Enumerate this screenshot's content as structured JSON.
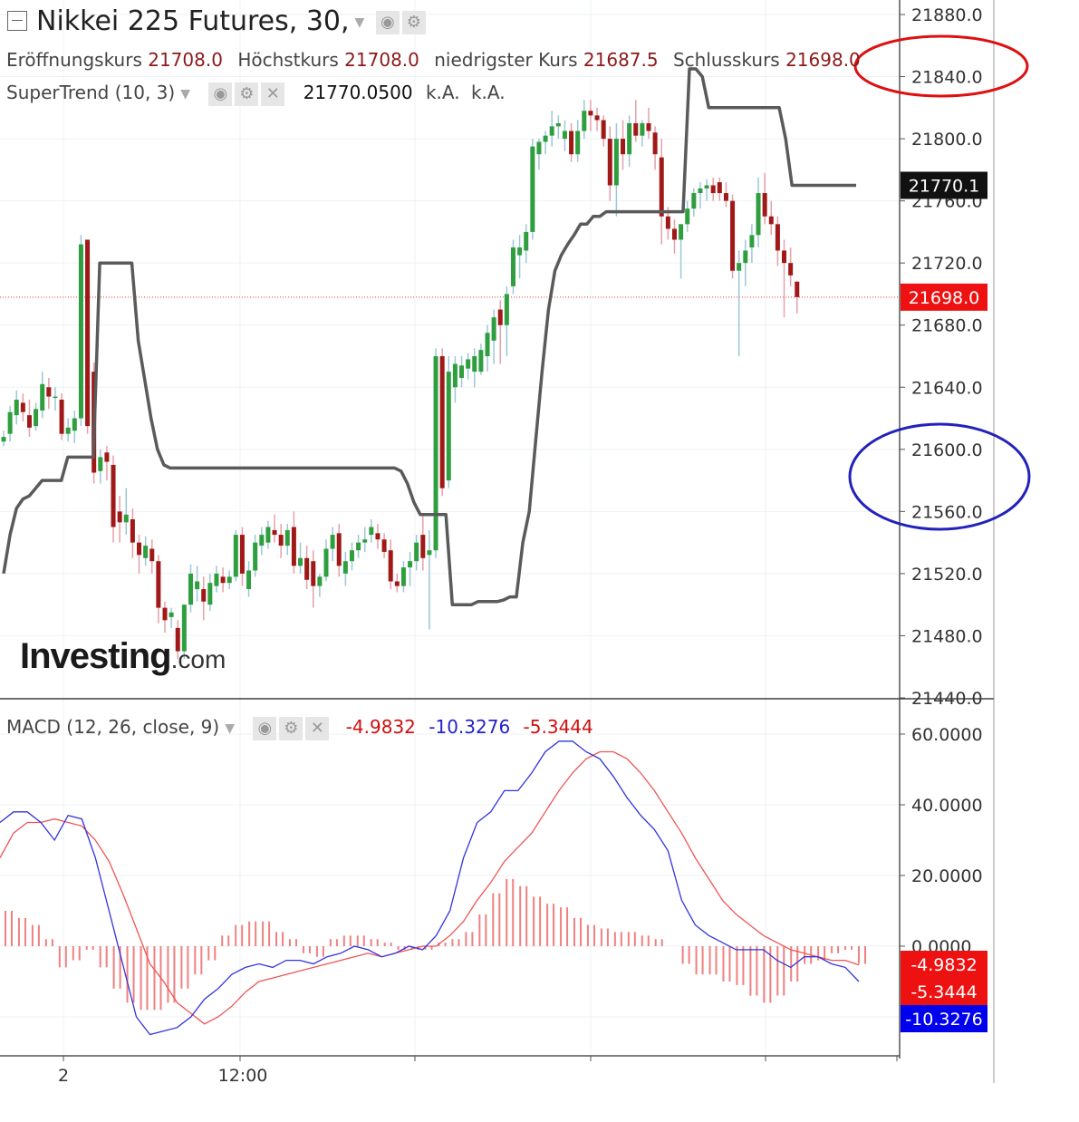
{
  "header": {
    "title": "Nikkei 225 Futures, 30,",
    "ohlc": [
      {
        "label": "Eröffnungskurs",
        "value": "21708.0"
      },
      {
        "label": "Höchstkurs",
        "value": "21708.0"
      },
      {
        "label": "niedrigster Kurs",
        "value": "21687.5"
      },
      {
        "label": "Schlusskurs",
        "value": "21698.0"
      }
    ],
    "supertrend": {
      "label": "SuperTrend (10, 3)",
      "value": "21770.0500",
      "extra1": "k.A.",
      "extra2": "k.A."
    },
    "macd": {
      "label": "MACD (12, 26, close, 9)",
      "v1": "-4.9832",
      "v2": "-10.3276",
      "v3": "-5.3444"
    }
  },
  "logo": {
    "brand": "Investing",
    "suffix": ".com"
  },
  "colors": {
    "up": "#2e9e3e",
    "down": "#a01818",
    "supertrend": "#5a5a5a",
    "macd": "#3333dd",
    "signal": "#ee5555",
    "hist": "#f08080",
    "price_tag": "#ee1111",
    "ann_red": "#dd1111",
    "ann_blue": "#2222bb"
  },
  "chart_data": [
    {
      "type": "candlestick",
      "title": "Nikkei 225 Futures, 30,",
      "ylim": [
        21440,
        21880
      ],
      "y_ticks": [
        "21880.0",
        "21840.0",
        "21800.0",
        "21760.0",
        "21720.0",
        "21680.0",
        "21640.0",
        "21600.0",
        "21560.0",
        "21520.0",
        "21480.0",
        "21440.0"
      ],
      "x_ticks": [
        {
          "label": "2",
          "bar": 10
        },
        {
          "label": "12:00",
          "bar": 38
        }
      ],
      "price_labels": {
        "supertrend": "21770.1",
        "last": "21698.0"
      },
      "candles": [
        [
          21605,
          21612,
          21602,
          21608
        ],
        [
          21610,
          21628,
          21605,
          21624
        ],
        [
          21622,
          21638,
          21616,
          21632
        ],
        [
          21630,
          21636,
          21618,
          21624
        ],
        [
          21622,
          21632,
          21608,
          21614
        ],
        [
          21615,
          21630,
          21612,
          21626
        ],
        [
          21625,
          21650,
          21620,
          21642
        ],
        [
          21640,
          21646,
          21626,
          21634
        ],
        [
          21634,
          21640,
          21625,
          21634
        ],
        [
          21632,
          21636,
          21606,
          21610
        ],
        [
          21610,
          21620,
          21605,
          21614
        ],
        [
          21612,
          21625,
          21604,
          21620
        ],
        [
          21620,
          21738,
          21615,
          21732
        ],
        [
          21735,
          21735,
          21610,
          21615
        ],
        [
          21650,
          21656,
          21578,
          21585
        ],
        [
          21586,
          21600,
          21578,
          21595
        ],
        [
          21598,
          21602,
          21580,
          21592
        ],
        [
          21590,
          21596,
          21540,
          21550
        ],
        [
          21560,
          21570,
          21540,
          21553
        ],
        [
          21553,
          21575,
          21545,
          21558
        ],
        [
          21555,
          21562,
          21530,
          21540
        ],
        [
          21540,
          21545,
          21520,
          21532
        ],
        [
          21530,
          21544,
          21525,
          21538
        ],
        [
          21536,
          21542,
          21520,
          21528
        ],
        [
          21528,
          21532,
          21488,
          21498
        ],
        [
          21498,
          21502,
          21482,
          21490
        ],
        [
          21492,
          21498,
          21485,
          21495
        ],
        [
          21485,
          21490,
          21465,
          21470
        ],
        [
          21470,
          21500,
          21465,
          21500
        ],
        [
          21500,
          21526,
          21495,
          21520
        ],
        [
          21510,
          21525,
          21502,
          21515
        ],
        [
          21510,
          21518,
          21490,
          21502
        ],
        [
          21500,
          21520,
          21496,
          21514
        ],
        [
          21512,
          21525,
          21508,
          21520
        ],
        [
          21518,
          21524,
          21508,
          21514
        ],
        [
          21514,
          21522,
          21510,
          21518
        ],
        [
          21518,
          21548,
          21515,
          21545
        ],
        [
          21545,
          21550,
          21512,
          21520
        ],
        [
          21510,
          21528,
          21505,
          21522
        ],
        [
          21522,
          21545,
          21518,
          21540
        ],
        [
          21538,
          21550,
          21532,
          21545
        ],
        [
          21540,
          21554,
          21536,
          21550
        ],
        [
          21548,
          21558,
          21540,
          21545
        ],
        [
          21545,
          21552,
          21530,
          21538
        ],
        [
          21538,
          21552,
          21532,
          21548
        ],
        [
          21550,
          21560,
          21520,
          21525
        ],
        [
          21525,
          21540,
          21520,
          21530
        ],
        [
          21530,
          21538,
          21510,
          21516
        ],
        [
          21528,
          21535,
          21498,
          21512
        ],
        [
          21512,
          21520,
          21505,
          21518
        ],
        [
          21518,
          21542,
          21515,
          21536
        ],
        [
          21536,
          21550,
          21528,
          21545
        ],
        [
          21546,
          21552,
          21518,
          21525
        ],
        [
          21520,
          21534,
          21512,
          21528
        ],
        [
          21528,
          21540,
          21522,
          21535
        ],
        [
          21535,
          21545,
          21530,
          21540
        ],
        [
          21540,
          21550,
          21534,
          21542
        ],
        [
          21545,
          21555,
          21540,
          21550
        ],
        [
          21546,
          21552,
          21536,
          21542
        ],
        [
          21542,
          21546,
          21530,
          21534
        ],
        [
          21535,
          21542,
          21510,
          21515
        ],
        [
          21515,
          21520,
          21508,
          21512
        ],
        [
          21512,
          21528,
          21508,
          21524
        ],
        [
          21524,
          21534,
          21512,
          21528
        ],
        [
          21528,
          21545,
          21522,
          21540
        ],
        [
          21545,
          21558,
          21522,
          21530
        ],
        [
          21532,
          21548,
          21484,
          21535
        ],
        [
          21535,
          21665,
          21530,
          21660
        ],
        [
          21660,
          21665,
          21570,
          21575
        ],
        [
          21580,
          21660,
          21575,
          21650
        ],
        [
          21640,
          21660,
          21630,
          21655
        ],
        [
          21646,
          21660,
          21640,
          21654
        ],
        [
          21652,
          21662,
          21645,
          21658
        ],
        [
          21650,
          21665,
          21640,
          21660
        ],
        [
          21650,
          21668,
          21648,
          21664
        ],
        [
          21660,
          21680,
          21650,
          21675
        ],
        [
          21670,
          21690,
          21655,
          21685
        ],
        [
          21690,
          21696,
          21655,
          21680
        ],
        [
          21680,
          21705,
          21660,
          21700
        ],
        [
          21705,
          21735,
          21700,
          21730
        ],
        [
          21725,
          21738,
          21710,
          21730
        ],
        [
          21728,
          21745,
          21720,
          21740
        ],
        [
          21740,
          21800,
          21735,
          21795
        ],
        [
          21790,
          21800,
          21780,
          21798
        ],
        [
          21798,
          21805,
          21790,
          21802
        ],
        [
          21802,
          21818,
          21795,
          21808
        ],
        [
          21808,
          21815,
          21800,
          21810
        ],
        [
          21800,
          21812,
          21792,
          21805
        ],
        [
          21805,
          21810,
          21785,
          21790
        ],
        [
          21790,
          21812,
          21785,
          21805
        ],
        [
          21805,
          21825,
          21800,
          21818
        ],
        [
          21818,
          21825,
          21805,
          21815
        ],
        [
          21815,
          21820,
          21805,
          21812
        ],
        [
          21812,
          21815,
          21795,
          21800
        ],
        [
          21800,
          21808,
          21760,
          21770
        ],
        [
          21770,
          21810,
          21750,
          21800
        ],
        [
          21800,
          21812,
          21780,
          21790
        ],
        [
          21790,
          21815,
          21782,
          21810
        ],
        [
          21810,
          21825,
          21798,
          21802
        ],
        [
          21802,
          21812,
          21795,
          21810
        ],
        [
          21810,
          21820,
          21800,
          21805
        ],
        [
          21804,
          21808,
          21780,
          21790
        ],
        [
          21788,
          21800,
          21732,
          21750
        ],
        [
          21750,
          21756,
          21735,
          21742
        ],
        [
          21742,
          21748,
          21726,
          21735
        ],
        [
          21735,
          21745,
          21710,
          21745
        ],
        [
          21745,
          21760,
          21740,
          21755
        ],
        [
          21755,
          21768,
          21750,
          21765
        ],
        [
          21765,
          21772,
          21755,
          21768
        ],
        [
          21768,
          21774,
          21760,
          21770
        ],
        [
          21770,
          21775,
          21760,
          21765
        ],
        [
          21772,
          21775,
          21760,
          21765
        ],
        [
          21765,
          21772,
          21756,
          21760
        ],
        [
          21760,
          21764,
          21710,
          21715
        ],
        [
          21715,
          21728,
          21660,
          21720
        ],
        [
          21720,
          21735,
          21705,
          21728
        ],
        [
          21730,
          21745,
          21720,
          21738
        ],
        [
          21738,
          21775,
          21730,
          21765
        ],
        [
          21765,
          21778,
          21745,
          21750
        ],
        [
          21750,
          21760,
          21738,
          21745
        ],
        [
          21745,
          21750,
          21718,
          21728
        ],
        [
          21728,
          21735,
          21685,
          21720
        ],
        [
          21720,
          21730,
          21705,
          21712
        ],
        [
          21708,
          21708,
          21687.5,
          21698
        ]
      ],
      "supertrend": [
        21520,
        21545,
        21562,
        21568,
        21570,
        21575,
        21580,
        21580,
        21580,
        21580,
        21595,
        21595,
        21595,
        21595,
        21595,
        21720,
        21720,
        21720,
        21720,
        21720,
        21720,
        21670,
        21645,
        21620,
        21600,
        21590,
        21588,
        21588,
        21588,
        21588,
        21588,
        21588,
        21588,
        21588,
        21588,
        21588,
        21588,
        21588,
        21588,
        21588,
        21588,
        21588,
        21588,
        21588,
        21588,
        21588,
        21588,
        21588,
        21588,
        21588,
        21588,
        21588,
        21588,
        21588,
        21588,
        21588,
        21588,
        21588,
        21588,
        21588,
        21588,
        21588,
        21586,
        21578,
        21566,
        21558,
        21558,
        21558,
        21558,
        21558,
        21500,
        21500,
        21500,
        21500,
        21502,
        21502,
        21502,
        21502,
        21503,
        21505,
        21505,
        21540,
        21560,
        21605,
        21650,
        21690,
        21715,
        21725,
        21732,
        21738,
        21745,
        21745,
        21750,
        21750,
        21753,
        21753,
        21753,
        21753,
        21753,
        21753,
        21753,
        21753,
        21753,
        21753,
        21753,
        21753,
        21753,
        21845,
        21845,
        21840,
        21820,
        21820,
        21820,
        21820,
        21820,
        21820,
        21820,
        21820,
        21820,
        21820,
        21820,
        21820,
        21800,
        21770,
        21770,
        21770,
        21770,
        21770,
        21770,
        21770,
        21770,
        21770,
        21770,
        21770
      ]
    },
    {
      "type": "line",
      "title": "MACD (12, 26, close, 9)",
      "ylim": [
        -30,
        65
      ],
      "y_ticks": [
        "60.0000",
        "40.0000",
        "20.0000",
        "0.0000"
      ],
      "price_labels": [
        "-4.9832",
        "-5.3444",
        "-10.3276"
      ],
      "series": [
        {
          "values": [
            35,
            38,
            38,
            35,
            30,
            37,
            36,
            25,
            10,
            -5,
            -20,
            -25,
            -24,
            -23,
            -20,
            -15,
            -12,
            -8,
            -6,
            -5,
            -6,
            -4,
            -4,
            -5,
            -3,
            -2,
            0,
            -1,
            -3,
            -2,
            0,
            -1,
            3,
            10,
            25,
            35,
            38,
            44,
            44,
            49,
            55,
            58,
            58,
            55,
            53,
            48,
            42,
            37,
            33,
            27,
            13,
            6,
            3,
            1,
            -1,
            -1,
            -1,
            -4,
            -6,
            -3,
            -3,
            -5,
            -6,
            -10
          ]
        },
        {
          "values": [
            25,
            32,
            35,
            35,
            36,
            35,
            34,
            30,
            24,
            15,
            5,
            -5,
            -10,
            -16,
            -19,
            -22,
            -20,
            -17,
            -13,
            -10,
            -9,
            -8,
            -7,
            -6,
            -5,
            -4,
            -3,
            -2,
            -3,
            -2,
            -1,
            0,
            0,
            3,
            7,
            13,
            18,
            24,
            28,
            32,
            38,
            44,
            49,
            53,
            55,
            55,
            53,
            49,
            44,
            38,
            32,
            25,
            19,
            13,
            9,
            6,
            3,
            1,
            -1,
            -2,
            -3,
            -4,
            -4,
            -5.3
          ]
        },
        {
          "values": [
            10,
            8,
            6,
            2,
            -6,
            -4,
            -1,
            -6,
            -12,
            -16,
            -18,
            -18,
            -16,
            -12,
            -8,
            -4,
            3,
            6,
            7,
            7,
            4,
            2,
            -2,
            -3,
            2,
            3,
            3,
            2,
            1,
            -1,
            -1,
            -1,
            1,
            2,
            4,
            9,
            15,
            19,
            17,
            14,
            12,
            11,
            8,
            6,
            5,
            4,
            4,
            3,
            2,
            0,
            -5,
            -8,
            -8,
            -10,
            -11,
            -14,
            -16,
            -14,
            -10,
            -5,
            -4,
            -2,
            -1,
            -5
          ]
        }
      ]
    }
  ]
}
